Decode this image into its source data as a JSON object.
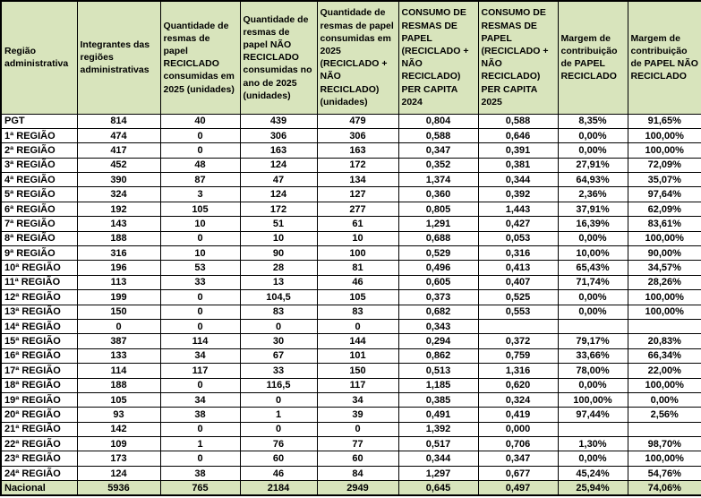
{
  "colors": {
    "header_bg": "#d8e4bc",
    "footer_bg": "#d8e4bc",
    "border": "#000000",
    "text": "#000000",
    "row_bg": "#ffffff"
  },
  "table": {
    "header": [
      "Região administrativa",
      "Integrantes das regiões administrativas",
      "Quantidade de resmas de papel RECICLADO consumidas em 2025 (unidades)",
      "Quantidade de resmas de papel NÃO RECICLADO consumidas no ano de 2025 (unidades)",
      "Quantidade de resmas de papel consumidas em 2025 (RECICLADO + NÃO RECICLADO) (unidades)",
      "CONSUMO DE RESMAS DE PAPEL (RECICLADO + NÃO RECICLADO) PER CAPITA 2024",
      "CONSUMO DE RESMAS DE PAPEL (RECICLADO + NÃO RECICLADO) PER CAPITA 2025",
      "Margem de contribuição de PAPEL RECICLADO",
      "Margem de contribuição de PAPEL NÃO RECICLADO"
    ],
    "rows": [
      [
        "PGT",
        "814",
        "40",
        "439",
        "479",
        "0,804",
        "0,588",
        "8,35%",
        "91,65%"
      ],
      [
        "1ª REGIÃO",
        "474",
        "0",
        "306",
        "306",
        "0,588",
        "0,646",
        "0,00%",
        "100,00%"
      ],
      [
        "2ª REGIÃO",
        "417",
        "0",
        "163",
        "163",
        "0,347",
        "0,391",
        "0,00%",
        "100,00%"
      ],
      [
        "3ª REGIÃO",
        "452",
        "48",
        "124",
        "172",
        "0,352",
        "0,381",
        "27,91%",
        "72,09%"
      ],
      [
        "4ª REGIÃO",
        "390",
        "87",
        "47",
        "134",
        "1,374",
        "0,344",
        "64,93%",
        "35,07%"
      ],
      [
        "5ª REGIÃO",
        "324",
        "3",
        "124",
        "127",
        "0,360",
        "0,392",
        "2,36%",
        "97,64%"
      ],
      [
        "6ª REGIÃO",
        "192",
        "105",
        "172",
        "277",
        "0,805",
        "1,443",
        "37,91%",
        "62,09%"
      ],
      [
        "7ª REGIÃO",
        "143",
        "10",
        "51",
        "61",
        "1,291",
        "0,427",
        "16,39%",
        "83,61%"
      ],
      [
        "8ª REGIÃO",
        "188",
        "0",
        "10",
        "10",
        "0,688",
        "0,053",
        "0,00%",
        "100,00%"
      ],
      [
        "9ª REGIÃO",
        "316",
        "10",
        "90",
        "100",
        "0,529",
        "0,316",
        "10,00%",
        "90,00%"
      ],
      [
        "10ª REGIÃO",
        "196",
        "53",
        "28",
        "81",
        "0,496",
        "0,413",
        "65,43%",
        "34,57%"
      ],
      [
        "11ª REGIÃO",
        "113",
        "33",
        "13",
        "46",
        "0,605",
        "0,407",
        "71,74%",
        "28,26%"
      ],
      [
        "12ª REGIÃO",
        "199",
        "0",
        "104,5",
        "105",
        "0,373",
        "0,525",
        "0,00%",
        "100,00%"
      ],
      [
        "13ª REGIÃO",
        "150",
        "0",
        "83",
        "83",
        "0,682",
        "0,553",
        "0,00%",
        "100,00%"
      ],
      [
        "14ª REGIÃO",
        "0",
        "0",
        "0",
        "0",
        "0,343",
        "",
        "",
        ""
      ],
      [
        "15ª REGIÃO",
        "387",
        "114",
        "30",
        "144",
        "0,294",
        "0,372",
        "79,17%",
        "20,83%"
      ],
      [
        "16ª REGIÃO",
        "133",
        "34",
        "67",
        "101",
        "0,862",
        "0,759",
        "33,66%",
        "66,34%"
      ],
      [
        "17ª REGIÃO",
        "114",
        "117",
        "33",
        "150",
        "0,513",
        "1,316",
        "78,00%",
        "22,00%"
      ],
      [
        "18ª REGIÃO",
        "188",
        "0",
        "116,5",
        "117",
        "1,185",
        "0,620",
        "0,00%",
        "100,00%"
      ],
      [
        "19ª REGIÃO",
        "105",
        "34",
        "0",
        "34",
        "0,385",
        "0,324",
        "100,00%",
        "0,00%"
      ],
      [
        "20ª REGIÃO",
        "93",
        "38",
        "1",
        "39",
        "0,491",
        "0,419",
        "97,44%",
        "2,56%"
      ],
      [
        "21ª REGIÃO",
        "142",
        "0",
        "0",
        "0",
        "1,392",
        "0,000",
        "",
        ""
      ],
      [
        "22ª REGIÃO",
        "109",
        "1",
        "76",
        "77",
        "0,517",
        "0,706",
        "1,30%",
        "98,70%"
      ],
      [
        "23ª REGIÃO",
        "173",
        "0",
        "60",
        "60",
        "0,344",
        "0,347",
        "0,00%",
        "100,00%"
      ],
      [
        "24ª REGIÃO",
        "124",
        "38",
        "46",
        "84",
        "1,297",
        "0,677",
        "45,24%",
        "54,76%"
      ]
    ],
    "footer": [
      "Nacional",
      "5936",
      "765",
      "2184",
      "2949",
      "0,645",
      "0,497",
      "25,94%",
      "74,06%"
    ]
  }
}
